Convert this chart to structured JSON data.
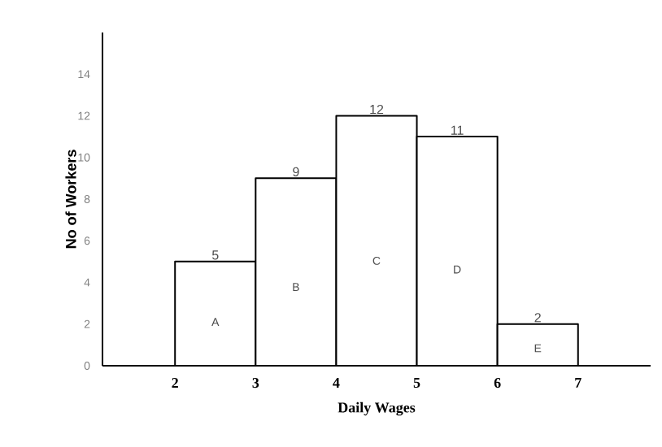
{
  "chart_data": {
    "type": "histogram",
    "xlabel": "Daily Wages",
    "ylabel": "No of Workers",
    "bins": [
      2,
      3,
      4,
      5,
      6,
      7
    ],
    "values": [
      5,
      9,
      12,
      11,
      2
    ],
    "color": "#ffffff",
    "data_labels": true,
    "xlim": [
      1.1,
      7.9
    ],
    "ylim": [
      0,
      16
    ],
    "xticks": [
      2,
      3,
      4,
      5,
      6,
      7
    ],
    "yticks": [
      0,
      2,
      4,
      6,
      8,
      10,
      12,
      14
    ],
    "grid": false,
    "annotations": [
      "A",
      "B",
      "C",
      "D",
      "E"
    ]
  }
}
